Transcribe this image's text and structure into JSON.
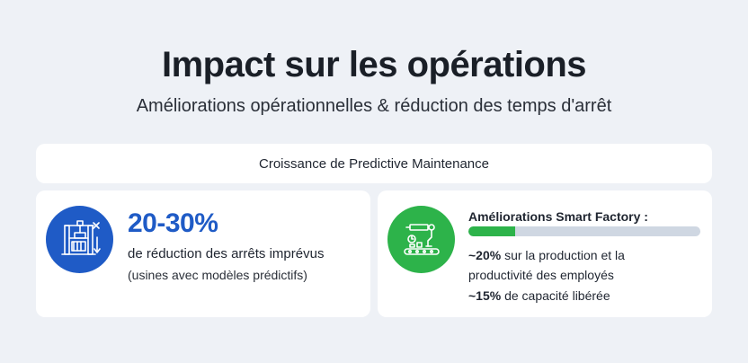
{
  "header": {
    "title": "Impact sur les opérations",
    "subtitle": "Améliorations opérationnelles & réduction des temps d'arrêt"
  },
  "banner": {
    "label": "Croissance de Predictive Maintenance"
  },
  "left_card": {
    "icon": "industrial-press-icon",
    "value": "20-30%",
    "description": "de réduction des arrêts imprévus",
    "note": "(usines avec modèles prédictifs)"
  },
  "right_card": {
    "icon": "factory-automation-icon",
    "title": "Améliorations Smart Factory :",
    "progress": 0.2,
    "line1_value": "~20%",
    "line1_text": " sur la production et la",
    "line2_text": "productivité des employés",
    "line3_value": "~15%",
    "line3_text": " de capacité libérée"
  },
  "colors": {
    "blue": "#1f5bc6",
    "green": "#2db34a",
    "track": "#cfd7e2",
    "background": "#eef1f6"
  }
}
